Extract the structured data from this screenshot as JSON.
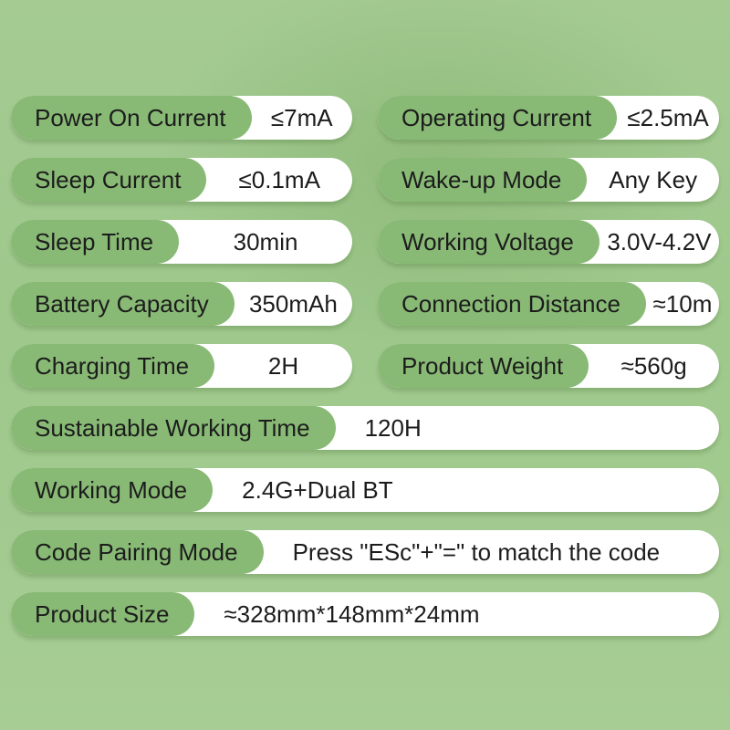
{
  "colors": {
    "background_green": "#9ec88c",
    "label_pill_green": "#88ba75",
    "value_pill_white": "#ffffff",
    "text": "#1c1c1c"
  },
  "specs": [
    {
      "label": "Power On Current",
      "value": "≤7mA"
    },
    {
      "label": "Operating Current",
      "value": "≤2.5mA"
    },
    {
      "label": "Sleep Current",
      "value": "≤0.1mA"
    },
    {
      "label": "Wake-up Mode",
      "value": "Any Key"
    },
    {
      "label": "Sleep Time",
      "value": "30min"
    },
    {
      "label": "Working Voltage",
      "value": "3.0V-4.2V"
    },
    {
      "label": "Battery Capacity",
      "value": "350mAh"
    },
    {
      "label": "Connection Distance",
      "value": "≈10m"
    },
    {
      "label": "Charging Time",
      "value": "2H"
    },
    {
      "label": "Product Weight",
      "value": "≈560g"
    },
    {
      "label": "Sustainable Working Time",
      "value": "120H"
    },
    {
      "label": "Working Mode",
      "value": "2.4G+Dual BT"
    },
    {
      "label": "Code Pairing Mode",
      "value": "Press \"ESc\"+\"=\" to match the code"
    },
    {
      "label": "Product Size",
      "value": "≈328mm*148mm*24mm"
    }
  ]
}
